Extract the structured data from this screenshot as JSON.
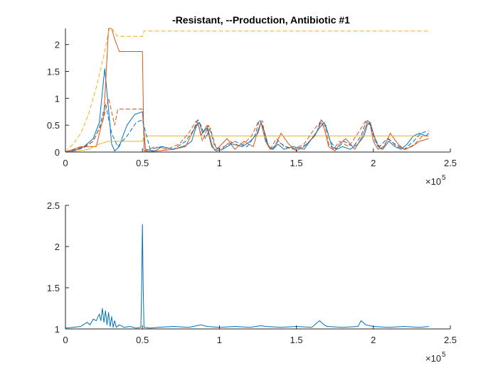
{
  "chart_data": [
    {
      "type": "line",
      "title": "-Resistant, --Production, Antibiotic #1",
      "xlim": [
        0,
        250000
      ],
      "ylim": [
        0,
        2.3
      ],
      "xticks": [
        0,
        50000,
        100000,
        150000,
        200000,
        250000
      ],
      "xtick_labels": [
        "0",
        "0.5",
        "1",
        "1.5",
        "2",
        "2.5"
      ],
      "yticks": [
        0,
        0.5,
        1,
        1.5,
        2
      ],
      "ytick_labels": [
        "0",
        "0.5",
        "1",
        "1.5",
        "2"
      ],
      "x_exponent_label": "×10",
      "x_exponent": "5",
      "series": [
        {
          "color": "#0072BD",
          "dash": false,
          "x": [
            0,
            4000,
            8000,
            12000,
            18000,
            22000,
            25500,
            27500,
            30000,
            32000,
            35000,
            38000,
            40000,
            45000,
            50000,
            52000,
            58000,
            63000,
            70000,
            78000,
            82000,
            85000,
            87000,
            89000,
            92000,
            95000,
            98000,
            102000,
            108000,
            115000,
            120000,
            125000,
            127000,
            129000,
            132000,
            135000,
            138000,
            142000,
            148000,
            155000,
            160000,
            165000,
            168000,
            170000,
            173000,
            176000,
            180000,
            185000,
            190000,
            194000,
            196000,
            198000,
            200000,
            203000,
            206000,
            210000,
            214000,
            218000,
            222000,
            226000,
            230000,
            234000,
            236000
          ],
          "y": [
            0,
            0.02,
            0.05,
            0.1,
            0.25,
            0.55,
            1.55,
            0.95,
            0.15,
            0.02,
            0.1,
            0.35,
            0.5,
            0.7,
            0.75,
            0.05,
            0.02,
            0.1,
            0.05,
            0.12,
            0.2,
            0.48,
            0.55,
            0.35,
            0.45,
            0.1,
            0.02,
            0.05,
            0.15,
            0.1,
            0.2,
            0.35,
            0.55,
            0.4,
            0.1,
            0.05,
            0.15,
            0.05,
            0.1,
            0.05,
            0.25,
            0.45,
            0.55,
            0.4,
            0.1,
            0.05,
            0.1,
            0.05,
            0.15,
            0.3,
            0.5,
            0.55,
            0.35,
            0.1,
            0.05,
            0.2,
            0.1,
            0.05,
            0.15,
            0.3,
            0.35,
            0.3,
            0.35
          ]
        },
        {
          "color": "#D95319",
          "dash": false,
          "x": [
            0,
            5000,
            10000,
            15000,
            20000,
            25000,
            28000,
            30000,
            32000,
            35000,
            50000,
            51000,
            55000,
            60000,
            70000,
            78000,
            84000,
            86000,
            88000,
            92000,
            95000,
            97000,
            100000,
            105000,
            110000,
            116000,
            122000,
            125000,
            127000,
            130000,
            133000,
            136000,
            140000,
            145000,
            150000,
            155000,
            162000,
            166000,
            168000,
            171000,
            175000,
            178000,
            182000,
            188000,
            193000,
            196000,
            198000,
            200000,
            203000,
            207000,
            211000,
            216000,
            220000,
            225000,
            230000,
            236000
          ],
          "y": [
            0,
            0.05,
            0.1,
            0.1,
            0.1,
            0.7,
            2.3,
            2.3,
            2.1,
            1.87,
            1.87,
            0.02,
            0.01,
            0.02,
            0.05,
            0.1,
            0.45,
            0.55,
            0.3,
            0.5,
            0.15,
            0.03,
            0.1,
            0.25,
            0.05,
            0.2,
            0.1,
            0.4,
            0.55,
            0.2,
            0.05,
            0.1,
            0.35,
            0.15,
            0.02,
            0.1,
            0.3,
            0.55,
            0.45,
            0.1,
            0.02,
            0.15,
            0.25,
            0.05,
            0.3,
            0.55,
            0.5,
            0.2,
            0.05,
            0.1,
            0.35,
            0.15,
            0.05,
            0.1,
            0.2,
            0.25
          ]
        },
        {
          "color": "#EDB120",
          "dash": false,
          "x": [
            0,
            8000,
            15000,
            22000,
            28000,
            30000,
            50000,
            51000,
            236000
          ],
          "y": [
            0,
            0.02,
            0.05,
            0.15,
            0.2,
            0.2,
            0.2,
            0.3,
            0.3
          ]
        },
        {
          "color": "#EDB120",
          "dash": true,
          "x": [
            0,
            5000,
            10000,
            15000,
            20000,
            25000,
            28000,
            30000,
            34000,
            50000,
            51000,
            236000
          ],
          "y": [
            0,
            0.15,
            0.35,
            0.7,
            1.2,
            1.8,
            2.25,
            2.3,
            2.15,
            2.15,
            2.25,
            2.25
          ]
        },
        {
          "color": "#0072BD",
          "dash": true,
          "x": [
            0,
            6000,
            12000,
            18000,
            22000,
            26000,
            30000,
            34000,
            40000,
            46000,
            50000,
            55000,
            62000,
            70000,
            78000,
            83000,
            86000,
            88000,
            91000,
            94000,
            98000,
            103000,
            110000,
            118000,
            123000,
            126000,
            128000,
            131000,
            134000,
            138000,
            143000,
            150000,
            157000,
            163000,
            166000,
            169000,
            172000,
            176000,
            181000,
            187000,
            192000,
            195000,
            197000,
            200000,
            204000,
            209000,
            214000,
            220000,
            226000,
            231000,
            236000
          ],
          "y": [
            0,
            0.03,
            0.08,
            0.2,
            0.45,
            0.9,
            0.35,
            0.1,
            0.3,
            0.55,
            0.6,
            0.05,
            0.1,
            0.05,
            0.2,
            0.4,
            0.6,
            0.5,
            0.25,
            0.45,
            0.05,
            0.1,
            0.2,
            0.1,
            0.3,
            0.6,
            0.5,
            0.15,
            0.05,
            0.2,
            0.1,
            0.05,
            0.15,
            0.35,
            0.6,
            0.5,
            0.2,
            0.05,
            0.2,
            0.1,
            0.3,
            0.55,
            0.6,
            0.3,
            0.1,
            0.25,
            0.15,
            0.05,
            0.2,
            0.35,
            0.4
          ]
        },
        {
          "color": "#D95319",
          "dash": true,
          "x": [
            0,
            6000,
            12000,
            18000,
            24000,
            28000,
            32000,
            34000,
            36000,
            44000,
            50000,
            52000,
            58000,
            66000,
            74000,
            80000,
            85000,
            87000,
            89000,
            93000,
            97000,
            101000,
            107000,
            114000,
            121000,
            125000,
            128000,
            130000,
            133000,
            137000,
            142000,
            148000,
            155000,
            161000,
            166000,
            169000,
            171000,
            174000,
            178000,
            184000,
            190000,
            195000,
            198000,
            201000,
            205000,
            210000,
            215000,
            221000,
            227000,
            232000,
            236000
          ],
          "y": [
            0,
            0.05,
            0.1,
            0.2,
            0.55,
            1.0,
            0.5,
            0.8,
            0.8,
            0.8,
            0.8,
            0.02,
            0.1,
            0.05,
            0.15,
            0.35,
            0.58,
            0.45,
            0.2,
            0.5,
            0.1,
            0.03,
            0.2,
            0.1,
            0.3,
            0.55,
            0.58,
            0.2,
            0.05,
            0.25,
            0.1,
            0.05,
            0.15,
            0.4,
            0.58,
            0.45,
            0.15,
            0.05,
            0.2,
            0.1,
            0.35,
            0.58,
            0.55,
            0.2,
            0.05,
            0.25,
            0.1,
            0.05,
            0.15,
            0.3,
            0.3
          ]
        }
      ]
    },
    {
      "type": "line",
      "title": "",
      "xlim": [
        0,
        250000
      ],
      "ylim": [
        1,
        2.5
      ],
      "xticks": [
        0,
        50000,
        100000,
        150000,
        200000,
        250000
      ],
      "xtick_labels": [
        "0",
        "0.5",
        "1",
        "1.5",
        "2",
        "2.5"
      ],
      "yticks": [
        1,
        1.5,
        2,
        2.5
      ],
      "ytick_labels": [
        "1",
        "1.5",
        "2",
        "2.5"
      ],
      "x_exponent_label": "×10",
      "x_exponent": "5",
      "series": [
        {
          "color": "#0072BD",
          "dash": false,
          "x": [
            0,
            5000,
            10000,
            14000,
            16000,
            18000,
            20000,
            22000,
            23000,
            24000,
            25000,
            26000,
            27000,
            28000,
            29000,
            30000,
            31000,
            32000,
            33000,
            35000,
            38000,
            42000,
            46000,
            49000,
            49500,
            50000,
            50500,
            51000,
            55000,
            60000,
            70000,
            80000,
            88000,
            90000,
            92000,
            100000,
            110000,
            120000,
            127000,
            130000,
            140000,
            150000,
            160000,
            165000,
            168000,
            170000,
            180000,
            190000,
            192000,
            195000,
            200000,
            210000,
            220000,
            230000,
            236000
          ],
          "y": [
            1.01,
            1.02,
            1.03,
            1.08,
            1.05,
            1.12,
            1.1,
            1.18,
            1.1,
            1.25,
            1.08,
            1.22,
            1.05,
            1.2,
            1.03,
            1.15,
            1.02,
            1.1,
            1.02,
            1.05,
            1.02,
            1.03,
            1.01,
            1.02,
            1.5,
            2.27,
            1.5,
            1.02,
            1.01,
            1.02,
            1.03,
            1.02,
            1.05,
            1.04,
            1.03,
            1.02,
            1.03,
            1.02,
            1.04,
            1.03,
            1.02,
            1.03,
            1.02,
            1.1,
            1.05,
            1.03,
            1.02,
            1.03,
            1.1,
            1.05,
            1.03,
            1.02,
            1.03,
            1.02,
            1.03
          ]
        }
      ]
    }
  ]
}
